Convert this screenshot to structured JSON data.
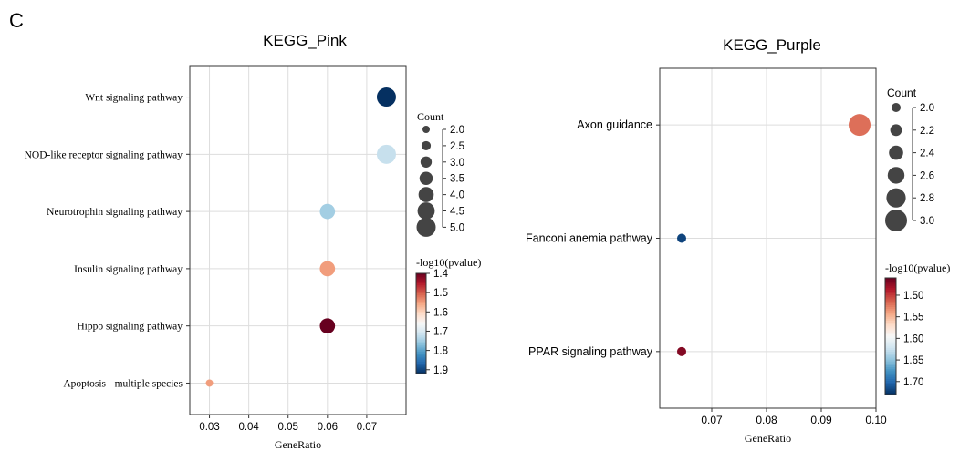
{
  "panel_label": "C",
  "chart_data": [
    {
      "type": "scatter",
      "title": "KEGG_Pink",
      "xlabel": "GeneRatio",
      "ylabel": "",
      "xlim": [
        0.025,
        0.08
      ],
      "xticks": [
        0.03,
        0.04,
        0.05,
        0.06,
        0.07
      ],
      "xtick_labels": [
        "0.03",
        "0.04",
        "0.05",
        "0.06",
        "0.07"
      ],
      "grid": true,
      "categories": [
        "Wnt signaling pathway",
        "NOD-like receptor signaling pathway",
        "Neurotrophin signaling pathway",
        "Insulin signaling pathway",
        "Hippo signaling pathway",
        "Apoptosis - multiple species"
      ],
      "points": [
        {
          "term": "Wnt signaling pathway",
          "x": 0.075,
          "count": 5,
          "neglog10p": 1.92
        },
        {
          "term": "NOD-like receptor signaling pathway",
          "x": 0.075,
          "count": 5,
          "neglog10p": 1.72
        },
        {
          "term": "Neurotrophin signaling pathway",
          "x": 0.06,
          "count": 4,
          "neglog10p": 1.75
        },
        {
          "term": "Insulin signaling pathway",
          "x": 0.06,
          "count": 4,
          "neglog10p": 1.55
        },
        {
          "term": "Hippo signaling pathway",
          "x": 0.06,
          "count": 4,
          "neglog10p": 1.4
        },
        {
          "term": "Apoptosis - multiple species",
          "x": 0.03,
          "count": 2,
          "neglog10p": 1.55
        }
      ],
      "size_legend": {
        "title": "Count",
        "values": [
          2.0,
          2.5,
          3.0,
          3.5,
          4.0,
          4.5,
          5.0
        ],
        "labels": [
          "2.0",
          "2.5",
          "3.0",
          "3.5",
          "4.0",
          "4.5",
          "5.0"
        ]
      },
      "color_legend": {
        "title": "-log10(pvalue)",
        "min": 1.4,
        "max": 1.92,
        "ticks": [
          1.4,
          1.5,
          1.6,
          1.7,
          1.8,
          1.9
        ],
        "labels": [
          "1.4",
          "1.5",
          "1.6",
          "1.7",
          "1.8",
          "1.9"
        ],
        "low_color": "#67001f",
        "high_color": "#053061"
      }
    },
    {
      "type": "scatter",
      "title": "KEGG_Purple",
      "xlabel": "GeneRatio",
      "ylabel": "",
      "xlim": [
        0.0605,
        0.1
      ],
      "xticks": [
        0.07,
        0.08,
        0.09,
        0.1
      ],
      "xtick_labels": [
        "0.07",
        "0.08",
        "0.09",
        "0.10"
      ],
      "grid": true,
      "categories": [
        "Axon guidance",
        "Fanconi anemia pathway",
        "PPAR signaling pathway"
      ],
      "points": [
        {
          "term": "Axon guidance",
          "x": 0.097,
          "count": 3,
          "neglog10p": 1.52
        },
        {
          "term": "Fanconi anemia pathway",
          "x": 0.0645,
          "count": 2,
          "neglog10p": 1.72
        },
        {
          "term": "PPAR signaling pathway",
          "x": 0.0645,
          "count": 2,
          "neglog10p": 1.47
        }
      ],
      "size_legend": {
        "title": "Count",
        "values": [
          2.0,
          2.2,
          2.4,
          2.6,
          2.8,
          3.0
        ],
        "labels": [
          "2.0",
          "2.2",
          "2.4",
          "2.6",
          "2.8",
          "3.0"
        ]
      },
      "color_legend": {
        "title": "-log10(pvalue)",
        "min": 1.46,
        "max": 1.73,
        "ticks": [
          1.5,
          1.55,
          1.6,
          1.65,
          1.7
        ],
        "labels": [
          "1.50",
          "1.55",
          "1.60",
          "1.65",
          "1.70"
        ],
        "low_color": "#67001f",
        "high_color": "#053061"
      }
    }
  ]
}
